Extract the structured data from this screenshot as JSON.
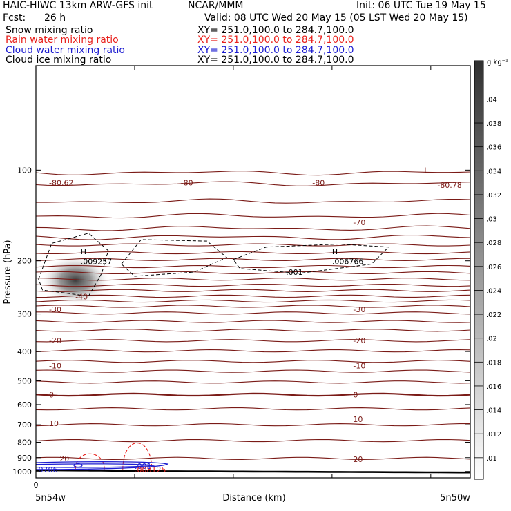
{
  "header": {
    "title": "HAIC-HIWC 13km ARW-GFS init",
    "org": "NCAR/MMM",
    "init": "Init: 06 UTC Tue 19 May 15",
    "fcst_label": "Fcst:",
    "fcst_value": "26 h",
    "valid": "Valid: 08 UTC Wed 20 May 15 (05 LST Wed 20 May 15)",
    "fields": [
      {
        "name": "Snow mixing ratio",
        "xy": "XY= 251.0,100.0 to 284.7,100.0",
        "color": "#000000"
      },
      {
        "name": "Rain water mixing ratio",
        "xy": "XY= 251.0,100.0 to 284.7,100.0",
        "color": "#e8211d"
      },
      {
        "name": "Cloud water mixing ratio",
        "xy": "XY= 251.0,100.0 to 284.7,100.0",
        "color": "#1c1cd0"
      },
      {
        "name": "Cloud ice mixing ratio",
        "xy": "XY= 251.0,100.0 to 284.7,100.0",
        "color": "#000000"
      }
    ]
  },
  "chart_data": {
    "type": "contour",
    "ylabel": "Pressure (hPa)",
    "xlabel": "Distance (km)",
    "x_left_label": "5n54w",
    "x_right_label": "5n50w",
    "x_ticks": [
      "0"
    ],
    "y_ticks": [
      100,
      200,
      300,
      400,
      500,
      600,
      700,
      800,
      900,
      1000
    ],
    "ylim": [
      1050,
      45
    ],
    "y_scale": "log",
    "x_range": [
      0,
      330
    ],
    "colorbar": {
      "unit": "g kg⁻¹",
      "ticks": [
        ".01",
        ".012",
        ".014",
        ".016",
        ".018",
        ".02",
        ".022",
        ".024",
        ".026",
        ".028",
        ".03",
        ".032",
        ".034",
        ".036",
        ".038",
        ".04"
      ]
    },
    "temperature_contours": [
      {
        "label": "-80.62",
        "x": 10,
        "p": 110
      },
      {
        "label": "-80",
        "x": 110,
        "p": 110
      },
      {
        "label": "-80",
        "x": 210,
        "p": 110
      },
      {
        "label": "L",
        "x": 295,
        "p": 100
      },
      {
        "label": "-80.78",
        "x": 305,
        "p": 112
      },
      {
        "label": "-70",
        "x": 241,
        "p": 149
      },
      {
        "label": "-40",
        "x": 30,
        "p": 263
      },
      {
        "label": "-30",
        "x": 10,
        "p": 290
      },
      {
        "label": "-30",
        "x": 241,
        "p": 290
      },
      {
        "label": "-20",
        "x": 10,
        "p": 367
      },
      {
        "label": "-20",
        "x": 241,
        "p": 367
      },
      {
        "label": "-10",
        "x": 10,
        "p": 445
      },
      {
        "label": "-10",
        "x": 241,
        "p": 445
      },
      {
        "label": "0",
        "x": 10,
        "p": 556
      },
      {
        "label": "0",
        "x": 241,
        "p": 556
      },
      {
        "label": "10",
        "x": 10,
        "p": 693
      },
      {
        "label": "10",
        "x": 241,
        "p": 670
      },
      {
        "label": "20",
        "x": 18,
        "p": 905
      },
      {
        "label": "20",
        "x": 241,
        "p": 910
      }
    ],
    "ice_labels": [
      {
        "label": "H",
        "x": 34,
        "p": 186
      },
      {
        "label": ".009257",
        "x": 34,
        "p": 201
      },
      {
        "label": "H",
        "x": 225,
        "p": 186
      },
      {
        "label": ".006766",
        "x": 225,
        "p": 201
      },
      {
        "label": ".001",
        "x": 190,
        "p": 218
      }
    ],
    "cloud_water_labels": [
      {
        "label": ".0706",
        "x": 0,
        "p": 985
      },
      {
        "label": ".001",
        "x": 75,
        "p": 960
      }
    ],
    "rain_labels": [
      {
        "label": ".008125",
        "x": 75,
        "p": 985
      }
    ]
  }
}
